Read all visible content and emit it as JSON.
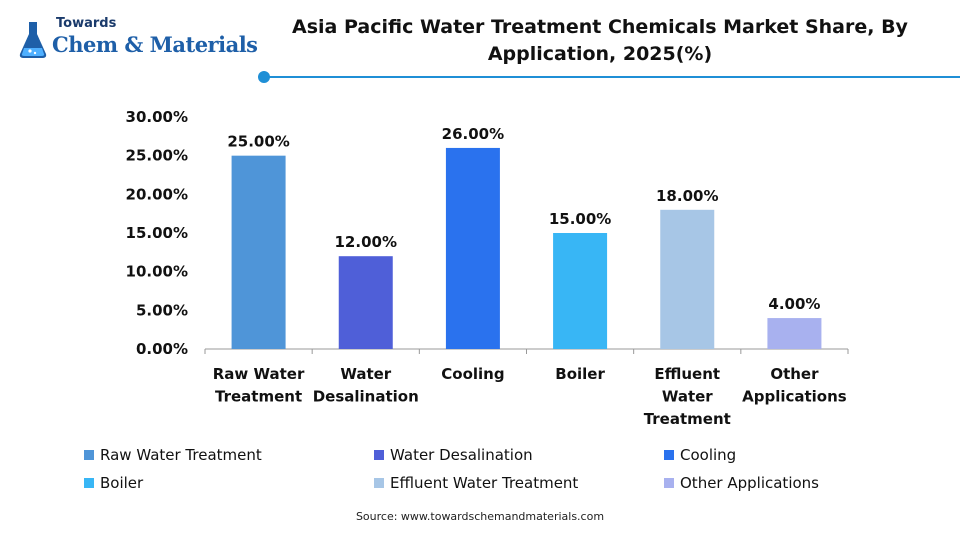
{
  "brand": {
    "line1": "Towards",
    "line2": "Chem & Materials"
  },
  "title": "Asia Pacific Water Treatment Chemicals Market Share, By Application, 2025(%)",
  "source": "Source: www.towardschemandmaterials.com",
  "colors": {
    "accent": "#1f8fd6"
  },
  "chart_data": {
    "type": "bar",
    "title": "Asia Pacific Water Treatment Chemicals Market Share, By Application, 2025(%)",
    "xlabel": "",
    "ylabel": "",
    "ylim": [
      0,
      30
    ],
    "yticks": [
      "0.00%",
      "5.00%",
      "10.00%",
      "15.00%",
      "20.00%",
      "25.00%",
      "30.00%"
    ],
    "grid": false,
    "legend_position": "bottom",
    "categories": [
      "Raw Water Treatment",
      "Water Desalination",
      "Cooling",
      "Boiler",
      "Effluent Water Treatment",
      "Other Applications"
    ],
    "values": [
      25,
      12,
      26,
      15,
      18,
      4
    ],
    "value_labels": [
      "25.00%",
      "12.00%",
      "26.00%",
      "15.00%",
      "18.00%",
      "4.00%"
    ],
    "colors": [
      "#4f95d8",
      "#4f5fd8",
      "#2a72ee",
      "#38b6f5",
      "#a7c6e6",
      "#a8b1ef"
    ]
  }
}
